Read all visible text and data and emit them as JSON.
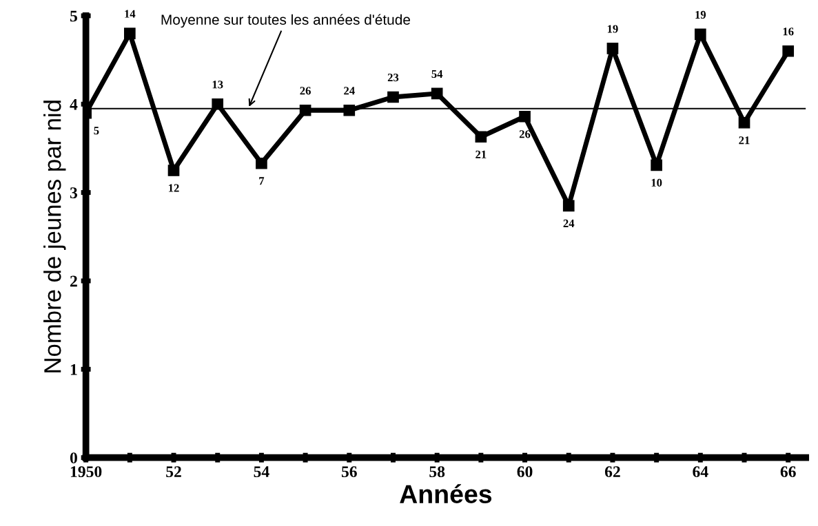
{
  "chart_data": {
    "type": "line",
    "xlabel": "Années",
    "ylabel": "Nombre de jeunes par nid",
    "x": [
      1950,
      1951,
      1952,
      1953,
      1954,
      1955,
      1956,
      1957,
      1958,
      1959,
      1960,
      1961,
      1962,
      1963,
      1964,
      1965,
      1966
    ],
    "series": [
      {
        "color": "#000000",
        "values": [
          3.9,
          4.8,
          3.25,
          4.0,
          3.33,
          3.93,
          3.93,
          4.08,
          4.12,
          3.63,
          3.86,
          2.85,
          4.63,
          3.31,
          4.79,
          3.79,
          4.6
        ]
      }
    ],
    "xlim": [
      1950,
      1966.4
    ],
    "ylim": [
      0,
      5
    ],
    "xticks": [
      {
        "value": 1950,
        "label": "1950"
      },
      {
        "value": 1951,
        "label": null
      },
      {
        "value": 1952,
        "label": "52"
      },
      {
        "value": 1953,
        "label": null
      },
      {
        "value": 1954,
        "label": "54"
      },
      {
        "value": 1955,
        "label": null
      },
      {
        "value": 1956,
        "label": "56"
      },
      {
        "value": 1957,
        "label": null
      },
      {
        "value": 1958,
        "label": "58"
      },
      {
        "value": 1959,
        "label": null
      },
      {
        "value": 1960,
        "label": "60"
      },
      {
        "value": 1961,
        "label": null
      },
      {
        "value": 1962,
        "label": "62"
      },
      {
        "value": 1963,
        "label": null
      },
      {
        "value": 1964,
        "label": "64"
      },
      {
        "value": 1965,
        "label": null
      },
      {
        "value": 1966,
        "label": "66"
      }
    ],
    "yticks": [
      0,
      1,
      2,
      3,
      4,
      5
    ],
    "ref_lines": [
      {
        "axis": "y",
        "value": 3.95,
        "color": "#000000",
        "line_style": "solid"
      }
    ],
    "annotations": [
      "Moyenne sur toutes les années d'étude",
      {
        "text": "5",
        "x": 1950,
        "y": 3.9
      },
      {
        "text": "14",
        "x": 1951,
        "y": 4.8
      },
      {
        "text": "12",
        "x": 1952,
        "y": 3.25
      },
      {
        "text": "13",
        "x": 1953,
        "y": 4.0
      },
      {
        "text": "7",
        "x": 1954,
        "y": 3.33
      },
      {
        "text": "26",
        "x": 1955,
        "y": 3.93
      },
      {
        "text": "24",
        "x": 1956,
        "y": 3.93
      },
      {
        "text": "23",
        "x": 1957,
        "y": 4.08
      },
      {
        "text": "54",
        "x": 1958,
        "y": 4.12
      },
      {
        "text": "21",
        "x": 1959,
        "y": 3.63
      },
      {
        "text": "26",
        "x": 1960,
        "y": 3.86
      },
      {
        "text": "24",
        "x": 1961,
        "y": 2.85
      },
      {
        "text": "19",
        "x": 1962,
        "y": 4.63
      },
      {
        "text": "10",
        "x": 1963,
        "y": 3.31
      },
      {
        "text": "19",
        "x": 1964,
        "y": 4.79
      },
      {
        "text": "21",
        "x": 1965,
        "y": 3.79
      },
      {
        "text": "16",
        "x": 1966,
        "y": 4.6
      }
    ],
    "marker": "square",
    "line_style": "solid",
    "grid": false,
    "legend": false
  }
}
